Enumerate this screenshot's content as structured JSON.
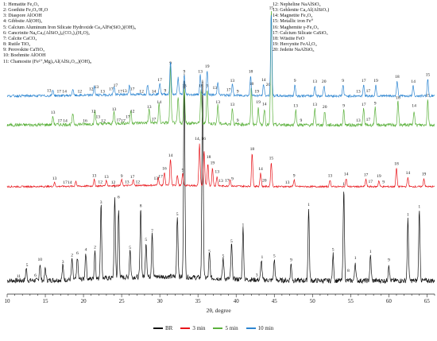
{
  "chart_data": {
    "type": "line",
    "title": "",
    "xlabel": "2θ, degree",
    "ylabel": "",
    "xlim": [
      10,
      66
    ],
    "x_ticks": [
      10,
      15,
      20,
      25,
      30,
      35,
      40,
      45,
      50,
      55,
      60,
      65
    ],
    "grid": false,
    "legend_position": "bottom",
    "phase_legend_left": [
      "1: Hematite Fe₂O₃",
      "2: Goethite Fe₂O₃/H₂O",
      "3: Diaspore AlOOH",
      "4: Gibbsite Al(OH)₃",
      "5: Calcium Aluminum Iron Silicate Hydroxide Ca₂AlFe(SiO₄)(OH)₈",
      "6: Cancrinite Na₆Ca₂(AlSiO₄)₆(CO₃)₂(H₂O)₂",
      "7: Calcite CaCO₃",
      "8: Rutile TiO₂",
      "9: Perovskite CaTiO₃",
      "10: Boehmite AlOOH",
      "11: Chamosite (Fe²⁺,Mg)₅Al(AlSi₃O₁₀)(OH)₈"
    ],
    "phase_legend_right": [
      "12: Nepheline NaAlSiO₄",
      "13: Gehlenite Ca₂Al(AlSiO₇)",
      "14: Magnetite Fe₃O₄",
      "15: Metallic iron Fe⁰",
      "16: Maghemite γ-Fe₂O₃",
      "17: Calcium Silicate CaSiO₃",
      "18: Wüstite FeO",
      "19: Hercynite FeAl₂O₄",
      "20: Jedeite NaAlSiO₆"
    ],
    "series": [
      {
        "name": "BR",
        "color": "#111111",
        "baseline": 0.05,
        "noise": 0.012,
        "peaks": [
          [
            12.5,
            0.06
          ],
          [
            14.3,
            0.08
          ],
          [
            15.0,
            0.06
          ],
          [
            17.3,
            0.07
          ],
          [
            18.5,
            0.1
          ],
          [
            19.2,
            0.11
          ],
          [
            20.3,
            0.13
          ],
          [
            21.5,
            0.14
          ],
          [
            22.3,
            0.36
          ],
          [
            24.1,
            0.39
          ],
          [
            24.6,
            0.33
          ],
          [
            26.1,
            0.14
          ],
          [
            27.5,
            0.34
          ],
          [
            28.2,
            0.17
          ],
          [
            29.0,
            0.22
          ],
          [
            32.3,
            0.3
          ],
          [
            33.2,
            0.98
          ],
          [
            35.6,
            0.95
          ],
          [
            36.5,
            0.12
          ],
          [
            38.3,
            0.1
          ],
          [
            39.4,
            0.17
          ],
          [
            40.9,
            0.25
          ],
          [
            43.3,
            0.1
          ],
          [
            45.0,
            0.1
          ],
          [
            47.2,
            0.08
          ],
          [
            49.5,
            0.35
          ],
          [
            52.7,
            0.13
          ],
          [
            54.1,
            0.45
          ],
          [
            55.6,
            0.09
          ],
          [
            57.6,
            0.12
          ],
          [
            60.0,
            0.08
          ],
          [
            62.5,
            0.3
          ],
          [
            64.0,
            0.34
          ]
        ]
      },
      {
        "name": "3 min",
        "color": "#e8141a",
        "baseline": 0.05,
        "noise": 0.012,
        "peaks": [
          [
            16.2,
            0.06
          ],
          [
            19.0,
            0.08
          ],
          [
            21.4,
            0.1
          ],
          [
            23.0,
            0.08
          ],
          [
            25.0,
            0.09
          ],
          [
            26.5,
            0.09
          ],
          [
            29.8,
            0.12
          ],
          [
            30.6,
            0.2
          ],
          [
            31.4,
            0.4
          ],
          [
            32.3,
            0.16
          ],
          [
            33.0,
            0.18
          ],
          [
            35.2,
            0.62
          ],
          [
            35.8,
            0.52
          ],
          [
            36.3,
            0.33
          ],
          [
            36.9,
            0.26
          ],
          [
            37.5,
            0.14
          ],
          [
            39.2,
            0.1
          ],
          [
            42.1,
            0.5
          ],
          [
            43.2,
            0.2
          ],
          [
            44.6,
            0.36
          ],
          [
            47.6,
            0.1
          ],
          [
            52.3,
            0.1
          ],
          [
            54.4,
            0.12
          ],
          [
            57.0,
            0.11
          ],
          [
            58.7,
            0.09
          ],
          [
            61.0,
            0.28
          ],
          [
            62.5,
            0.14
          ],
          [
            64.6,
            0.12
          ]
        ]
      },
      {
        "name": "5 min",
        "color": "#5bb13c",
        "baseline": 0.06,
        "noise": 0.014,
        "peaks": [
          [
            16.0,
            0.07
          ],
          [
            18.6,
            0.09
          ],
          [
            21.5,
            0.11
          ],
          [
            24.0,
            0.1
          ],
          [
            26.2,
            0.11
          ],
          [
            28.6,
            0.12
          ],
          [
            29.9,
            0.16
          ],
          [
            31.4,
            0.5
          ],
          [
            32.4,
            0.22
          ],
          [
            33.2,
            0.3
          ],
          [
            35.4,
            0.3
          ],
          [
            36.2,
            0.3
          ],
          [
            37.6,
            0.16
          ],
          [
            39.5,
            0.14
          ],
          [
            42.0,
            0.32
          ],
          [
            42.9,
            0.16
          ],
          [
            43.7,
            0.14
          ],
          [
            44.6,
            1.0
          ],
          [
            47.8,
            0.13
          ],
          [
            50.3,
            0.14
          ],
          [
            51.6,
            0.12
          ],
          [
            54.1,
            0.13
          ],
          [
            56.7,
            0.14
          ],
          [
            58.2,
            0.15
          ],
          [
            61.2,
            0.2
          ],
          [
            63.3,
            0.13
          ],
          [
            65.1,
            0.22
          ]
        ]
      },
      {
        "name": "10 min",
        "color": "#2e86d1",
        "baseline": 0.06,
        "noise": 0.014,
        "peaks": [
          [
            16.0,
            0.07
          ],
          [
            18.6,
            0.08
          ],
          [
            21.4,
            0.11
          ],
          [
            24.0,
            0.1
          ],
          [
            26.0,
            0.11
          ],
          [
            28.4,
            0.12
          ],
          [
            30.0,
            0.14
          ],
          [
            31.4,
            0.4
          ],
          [
            32.4,
            0.2
          ],
          [
            33.2,
            0.24
          ],
          [
            35.3,
            0.24
          ],
          [
            36.2,
            0.3
          ],
          [
            37.6,
            0.16
          ],
          [
            39.5,
            0.13
          ],
          [
            41.9,
            0.24
          ],
          [
            43.6,
            0.14
          ],
          [
            44.6,
            1.0
          ],
          [
            47.7,
            0.13
          ],
          [
            50.3,
            0.12
          ],
          [
            51.5,
            0.12
          ],
          [
            54.0,
            0.13
          ],
          [
            56.7,
            0.13
          ],
          [
            58.3,
            0.13
          ],
          [
            61.1,
            0.18
          ],
          [
            63.2,
            0.12
          ],
          [
            65.1,
            0.2
          ]
        ]
      }
    ],
    "annotations": {
      "BR": [
        [
          11.5,
          "11"
        ],
        [
          12.6,
          "5"
        ],
        [
          13.7,
          "6"
        ],
        [
          14.3,
          "10"
        ],
        [
          17.3,
          "3"
        ],
        [
          18.5,
          "2"
        ],
        [
          19.2,
          "6"
        ],
        [
          20.3,
          "4"
        ],
        [
          21.5,
          "2"
        ],
        [
          22.3,
          "3"
        ],
        [
          24.1,
          "1"
        ],
        [
          24.6,
          "6"
        ],
        [
          26.1,
          "5"
        ],
        [
          27.5,
          "8"
        ],
        [
          28.2,
          "5"
        ],
        [
          29.0,
          "7"
        ],
        [
          32.3,
          "5"
        ],
        [
          33.2,
          "1"
        ],
        [
          35.6,
          "1"
        ],
        [
          36.5,
          "5"
        ],
        [
          38.3,
          "5"
        ],
        [
          39.4,
          "5"
        ],
        [
          40.9,
          "1"
        ],
        [
          42.7,
          "3"
        ],
        [
          43.4,
          "1"
        ],
        [
          45.0,
          "5"
        ],
        [
          47.2,
          "9"
        ],
        [
          49.5,
          "1"
        ],
        [
          52.7,
          "5"
        ],
        [
          54.1,
          "1"
        ],
        [
          54.7,
          "8"
        ],
        [
          55.6,
          "1"
        ],
        [
          57.6,
          "1"
        ],
        [
          60.0,
          "9"
        ],
        [
          62.5,
          "1"
        ],
        [
          64.0,
          "1"
        ]
      ],
      "3 min": [
        [
          16.2,
          "13"
        ],
        [
          17.6,
          "17"
        ],
        [
          18.2,
          "14"
        ],
        [
          21.4,
          "13"
        ],
        [
          22.2,
          "12"
        ],
        [
          23.0,
          "13"
        ],
        [
          23.9,
          "12"
        ],
        [
          25.0,
          "9"
        ],
        [
          25.7,
          "13"
        ],
        [
          26.4,
          "17"
        ],
        [
          27.1,
          "12"
        ],
        [
          29.5,
          "13"
        ],
        [
          30.1,
          "17"
        ],
        [
          30.6,
          "16"
        ],
        [
          31.4,
          "14"
        ],
        [
          33.0,
          "9"
        ],
        [
          35.3,
          "14, 16"
        ],
        [
          36.4,
          "18"
        ],
        [
          36.9,
          "19"
        ],
        [
          37.5,
          "13"
        ],
        [
          38.0,
          "13"
        ],
        [
          38.8,
          "17"
        ],
        [
          39.5,
          "9"
        ],
        [
          42.1,
          "18"
        ],
        [
          43.2,
          "14"
        ],
        [
          43.7,
          "20"
        ],
        [
          44.6,
          "15"
        ],
        [
          46.7,
          "13"
        ],
        [
          47.6,
          "9"
        ],
        [
          52.3,
          "13"
        ],
        [
          54.4,
          "14"
        ],
        [
          57.0,
          "17"
        ],
        [
          57.6,
          "17"
        ],
        [
          58.7,
          "19"
        ],
        [
          59.3,
          "9"
        ],
        [
          61.0,
          "18"
        ],
        [
          62.5,
          "14"
        ],
        [
          64.6,
          "19"
        ]
      ],
      "5 min": [
        [
          16.0,
          "13"
        ],
        [
          16.9,
          "17"
        ],
        [
          17.6,
          "14"
        ],
        [
          20.2,
          "16"
        ],
        [
          21.3,
          "12"
        ],
        [
          21.9,
          "13"
        ],
        [
          22.6,
          "12"
        ],
        [
          24.0,
          "13"
        ],
        [
          24.6,
          "17"
        ],
        [
          25.2,
          "17"
        ],
        [
          25.8,
          "17"
        ],
        [
          26.4,
          "12"
        ],
        [
          28.6,
          "13"
        ],
        [
          29.2,
          "17"
        ],
        [
          29.9,
          "14"
        ],
        [
          31.4,
          "9"
        ],
        [
          33.2,
          "13"
        ],
        [
          35.4,
          "18"
        ],
        [
          36.2,
          "9"
        ],
        [
          37.6,
          "13"
        ],
        [
          39.5,
          "13"
        ],
        [
          40.2,
          "9"
        ],
        [
          42.0,
          "18"
        ],
        [
          42.9,
          "19"
        ],
        [
          43.7,
          "14"
        ],
        [
          44.2,
          "20"
        ],
        [
          47.8,
          "13"
        ],
        [
          48.5,
          "9"
        ],
        [
          50.3,
          "13"
        ],
        [
          51.6,
          "20"
        ],
        [
          54.1,
          "9"
        ],
        [
          56.0,
          "13"
        ],
        [
          56.7,
          "17"
        ],
        [
          57.3,
          "17"
        ],
        [
          58.2,
          "9"
        ],
        [
          61.2,
          "18"
        ],
        [
          63.3,
          "14"
        ],
        [
          65.1,
          "15"
        ]
      ],
      "10 min": [
        [
          15.5,
          "13"
        ],
        [
          16.8,
          "17"
        ],
        [
          17.5,
          "14"
        ],
        [
          19.5,
          "12"
        ],
        [
          21.0,
          "12"
        ],
        [
          21.7,
          "13"
        ],
        [
          22.5,
          "13"
        ],
        [
          23.6,
          "17"
        ],
        [
          24.2,
          "17"
        ],
        [
          24.8,
          "17"
        ],
        [
          25.4,
          "13"
        ],
        [
          26.4,
          "17"
        ],
        [
          27.6,
          "12"
        ],
        [
          29.2,
          "14"
        ],
        [
          30.0,
          "17"
        ],
        [
          30.7,
          "9"
        ],
        [
          33.2,
          "9"
        ],
        [
          35.3,
          "13"
        ],
        [
          36.2,
          "19"
        ],
        [
          37.2,
          "13"
        ],
        [
          39.0,
          "17"
        ],
        [
          39.5,
          "13"
        ],
        [
          40.2,
          "9"
        ],
        [
          41.9,
          "18"
        ],
        [
          42.7,
          "19"
        ],
        [
          43.6,
          "14"
        ],
        [
          44.6,
          "15"
        ],
        [
          47.7,
          "9"
        ],
        [
          50.3,
          "13"
        ],
        [
          51.5,
          "20"
        ],
        [
          54.0,
          "9"
        ],
        [
          56.0,
          "13"
        ],
        [
          56.7,
          "17"
        ],
        [
          57.3,
          "17"
        ],
        [
          58.3,
          "19"
        ],
        [
          61.1,
          "18"
        ],
        [
          63.2,
          "14"
        ],
        [
          65.1,
          "15"
        ]
      ]
    }
  }
}
